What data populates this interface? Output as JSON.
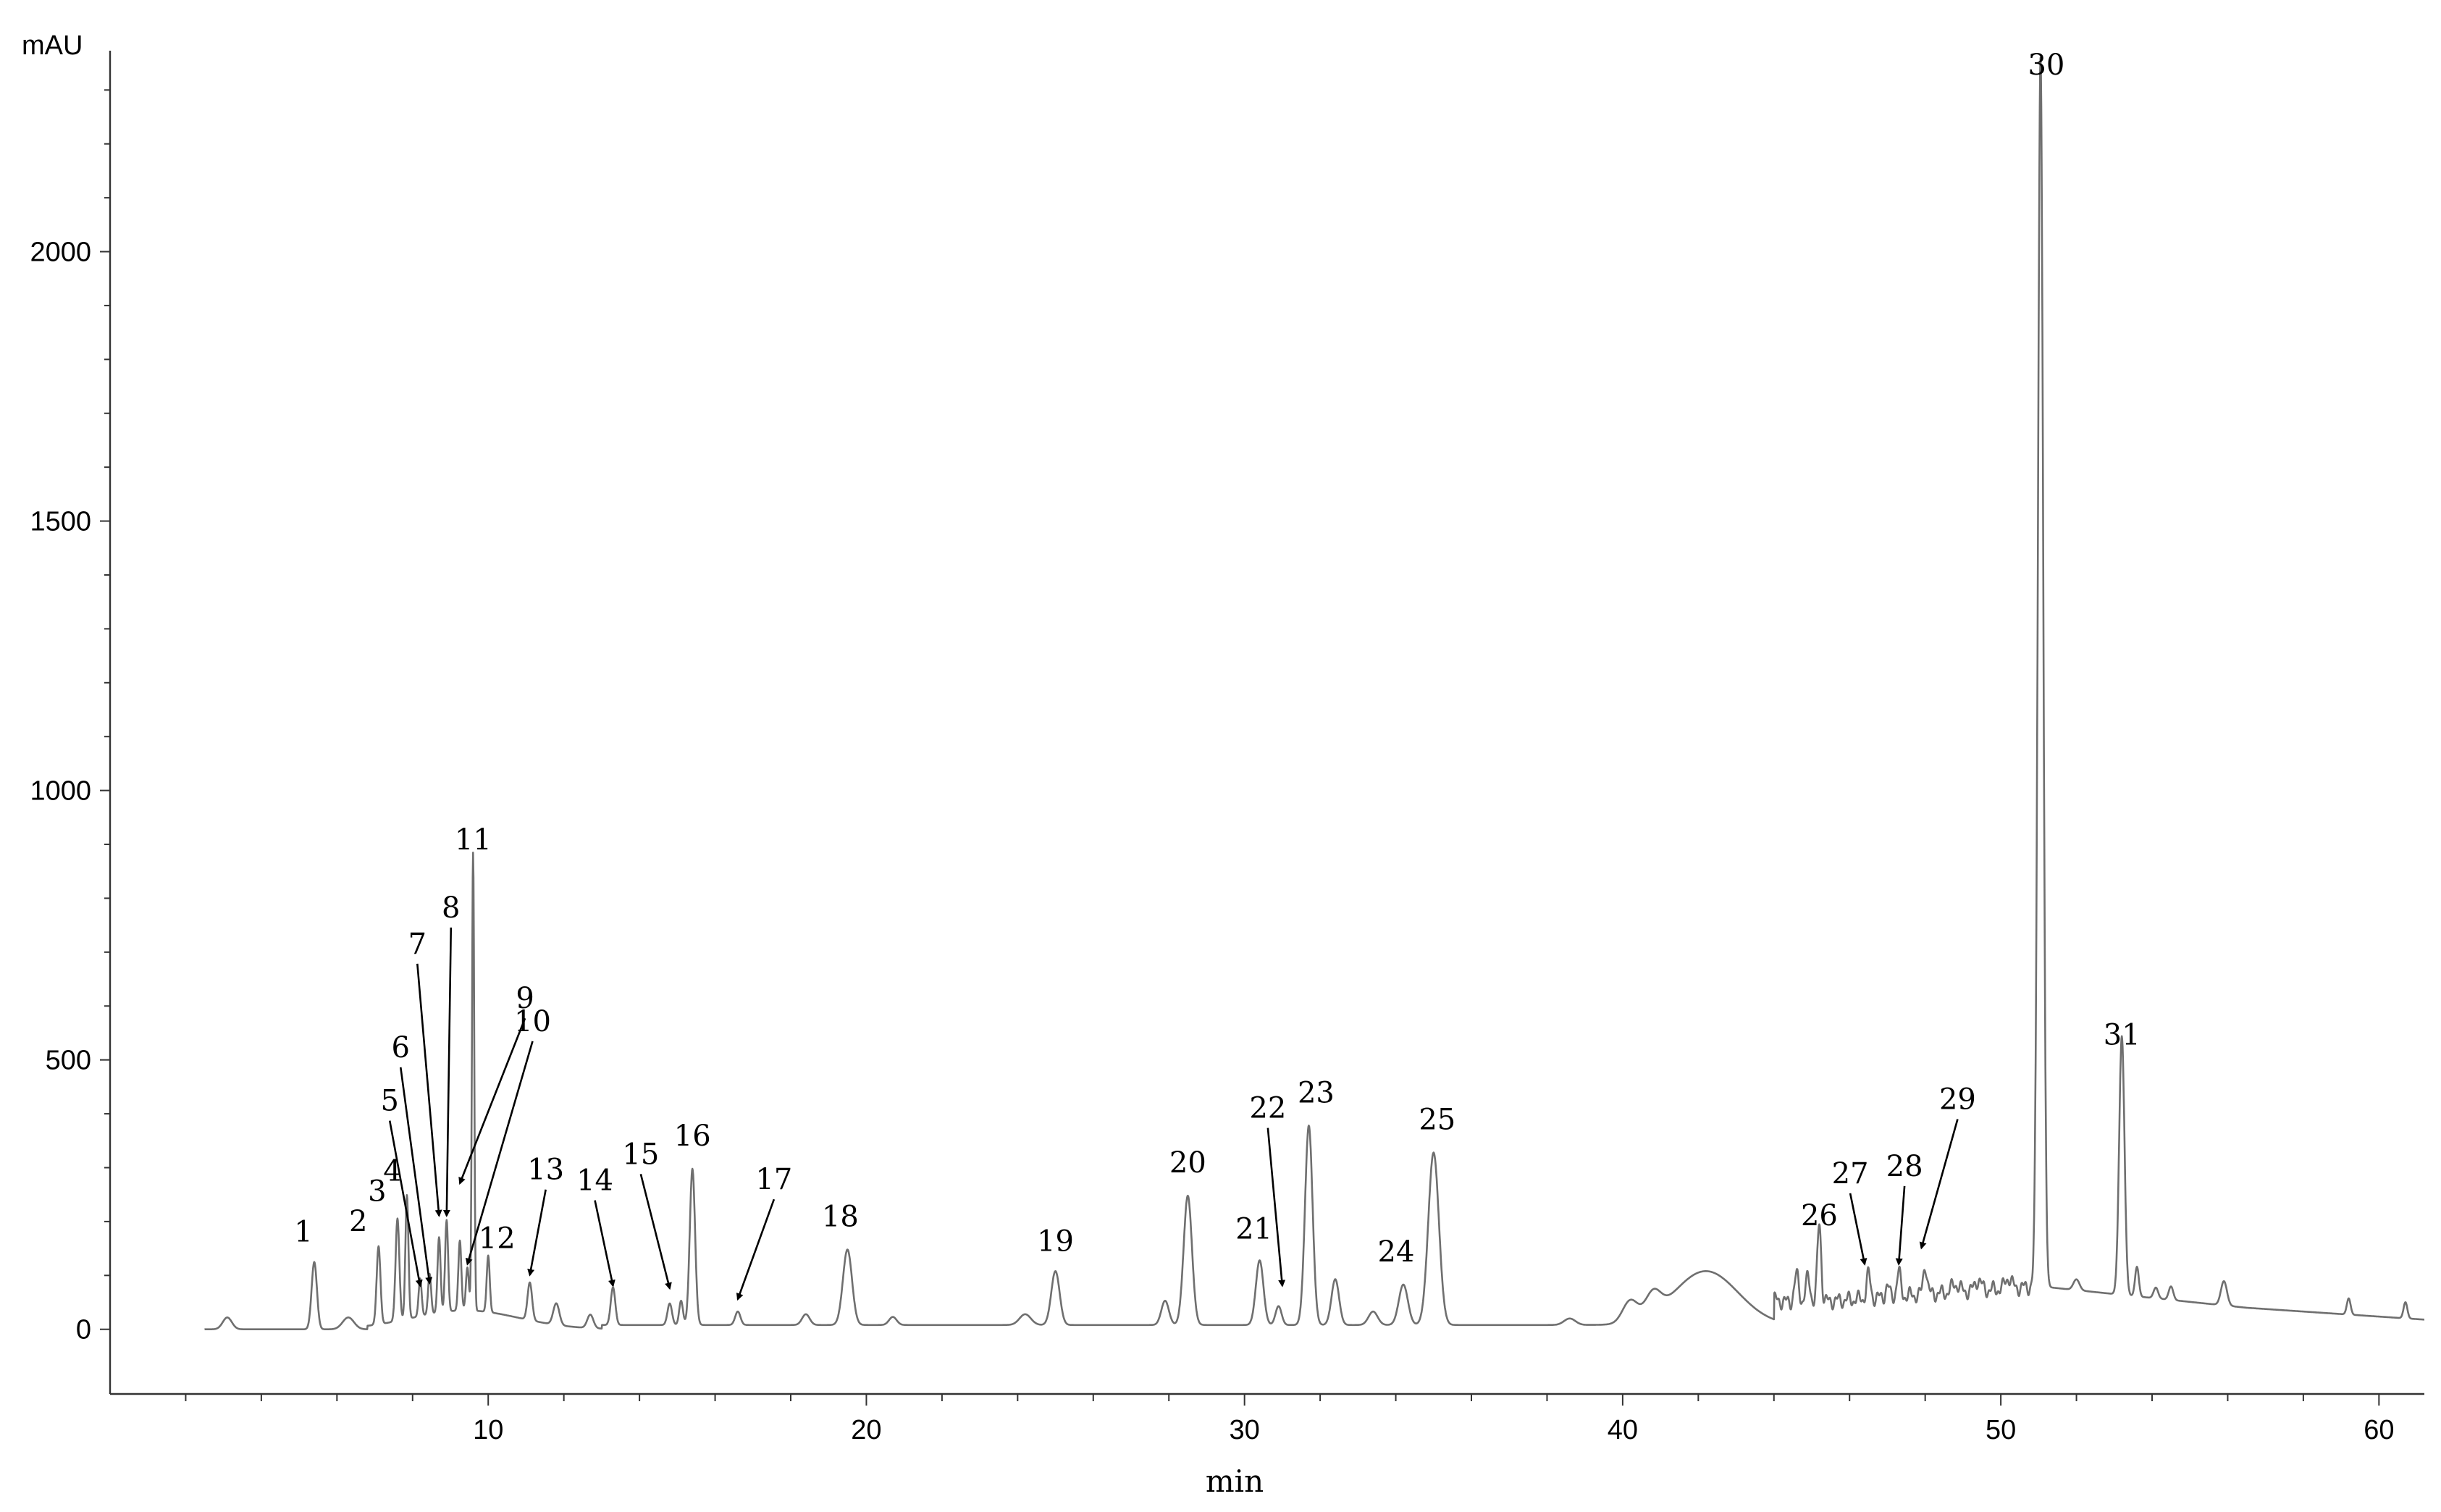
{
  "chart_data": {
    "type": "line",
    "title": "",
    "xlabel": "min",
    "ylabel": "mAU",
    "xlim": [
      0,
      61.2
    ],
    "ylim": [
      -120,
      2420
    ],
    "x_ticks": [
      10,
      20,
      30,
      40,
      50,
      60
    ],
    "x_tick_labels": [
      "10",
      "20",
      "30",
      "40",
      "50",
      "60"
    ],
    "x_minor_step": 2,
    "y_ticks": [
      0,
      500,
      1000,
      1500,
      2000
    ],
    "y_tick_labels": [
      "0",
      "500",
      "1000",
      "1500",
      "2000"
    ],
    "y_minor_step": 100,
    "grid": false,
    "baseline": 0,
    "series": [
      {
        "peaks": [
          {
            "label": "",
            "x": 3.1,
            "y": 22,
            "w": 0.12
          },
          {
            "label": "1",
            "x": 5.4,
            "y": 125,
            "w": 0.07
          },
          {
            "label": "",
            "x": 6.3,
            "y": 22,
            "w": 0.15
          },
          {
            "label": "2",
            "x": 7.1,
            "y": 145,
            "w": 0.05
          },
          {
            "label": "3",
            "x": 7.6,
            "y": 190,
            "w": 0.05
          },
          {
            "label": "4",
            "x": 7.85,
            "y": 230,
            "w": 0.04
          },
          {
            "label": "5",
            "x": 8.2,
            "y": 70,
            "w": 0.04
          },
          {
            "label": "6",
            "x": 8.45,
            "y": 75,
            "w": 0.04
          },
          {
            "label": "7",
            "x": 8.7,
            "y": 140,
            "w": 0.04
          },
          {
            "label": "8",
            "x": 8.9,
            "y": 170,
            "w": 0.04
          },
          {
            "label": "9",
            "x": 9.25,
            "y": 130,
            "w": 0.04
          },
          {
            "label": "10",
            "x": 9.45,
            "y": 80,
            "w": 0.04
          },
          {
            "label": "11",
            "x": 9.6,
            "y": 850,
            "w": 0.03
          },
          {
            "label": "12",
            "x": 10.0,
            "y": 105,
            "w": 0.04
          },
          {
            "label": "13",
            "x": 11.1,
            "y": 70,
            "w": 0.06
          },
          {
            "label": "",
            "x": 11.8,
            "y": 40,
            "w": 0.08
          },
          {
            "label": "",
            "x": 12.7,
            "y": 25,
            "w": 0.08
          },
          {
            "label": "14",
            "x": 13.3,
            "y": 70,
            "w": 0.06
          },
          {
            "label": "15",
            "x": 14.8,
            "y": 40,
            "w": 0.06
          },
          {
            "label": "",
            "x": 15.1,
            "y": 45,
            "w": 0.05
          },
          {
            "label": "16",
            "x": 15.4,
            "y": 290,
            "w": 0.07
          },
          {
            "label": "17",
            "x": 16.6,
            "y": 25,
            "w": 0.07
          },
          {
            "label": "",
            "x": 18.4,
            "y": 20,
            "w": 0.1
          },
          {
            "label": "18",
            "x": 19.5,
            "y": 140,
            "w": 0.12
          },
          {
            "label": "",
            "x": 20.7,
            "y": 15,
            "w": 0.1
          },
          {
            "label": "",
            "x": 24.2,
            "y": 20,
            "w": 0.15
          },
          {
            "label": "19",
            "x": 25.0,
            "y": 100,
            "w": 0.11
          },
          {
            "label": "",
            "x": 27.9,
            "y": 45,
            "w": 0.1
          },
          {
            "label": "20",
            "x": 28.5,
            "y": 240,
            "w": 0.11
          },
          {
            "label": "21",
            "x": 30.4,
            "y": 120,
            "w": 0.1
          },
          {
            "label": "22",
            "x": 30.9,
            "y": 35,
            "w": 0.08
          },
          {
            "label": "23",
            "x": 31.7,
            "y": 370,
            "w": 0.1
          },
          {
            "label": "",
            "x": 32.4,
            "y": 85,
            "w": 0.1
          },
          {
            "label": "",
            "x": 33.4,
            "y": 25,
            "w": 0.12
          },
          {
            "label": "24",
            "x": 34.2,
            "y": 75,
            "w": 0.12
          },
          {
            "label": "25",
            "x": 35.0,
            "y": 320,
            "w": 0.14
          },
          {
            "label": "",
            "x": 38.6,
            "y": 12,
            "w": 0.15
          },
          {
            "label": "",
            "x": 40.2,
            "y": 40,
            "w": 0.2
          },
          {
            "label": "",
            "x": 40.8,
            "y": 40,
            "w": 0.2
          },
          {
            "label": "",
            "x": 42.2,
            "y": 100,
            "w": 0.85
          },
          {
            "label": "",
            "x": 44.6,
            "y": 50,
            "w": 0.06
          },
          {
            "label": "",
            "x": 44.9,
            "y": 45,
            "w": 0.06
          },
          {
            "label": "26",
            "x": 45.2,
            "y": 145,
            "w": 0.05
          },
          {
            "label": "27",
            "x": 46.5,
            "y": 45,
            "w": 0.05
          },
          {
            "label": "",
            "x": 47.0,
            "y": 20,
            "w": 0.05
          },
          {
            "label": "28",
            "x": 47.3,
            "y": 45,
            "w": 0.05
          },
          {
            "label": "29",
            "x": 48.0,
            "y": 55,
            "w": 0.05
          },
          {
            "label": "",
            "x": 48.8,
            "y": 15,
            "w": 0.1
          },
          {
            "label": "",
            "x": 49.4,
            "y": 20,
            "w": 0.08
          },
          {
            "label": "",
            "x": 50.2,
            "y": 20,
            "w": 0.08
          },
          {
            "label": "30",
            "x": 51.05,
            "y": 2280,
            "w": 0.07
          },
          {
            "label": "",
            "x": 52.0,
            "y": 20,
            "w": 0.08
          },
          {
            "label": "31",
            "x": 53.2,
            "y": 480,
            "w": 0.07
          },
          {
            "label": "",
            "x": 53.6,
            "y": 55,
            "w": 0.05
          },
          {
            "label": "",
            "x": 54.1,
            "y": 20,
            "w": 0.06
          },
          {
            "label": "",
            "x": 54.5,
            "y": 25,
            "w": 0.06
          },
          {
            "label": "",
            "x": 55.9,
            "y": 45,
            "w": 0.08
          },
          {
            "label": "",
            "x": 59.2,
            "y": 30,
            "w": 0.05
          },
          {
            "label": "",
            "x": 60.7,
            "y": 30,
            "w": 0.05
          }
        ],
        "baseline_regions": [
          {
            "from": 44.0,
            "to": 51.0,
            "start": 45,
            "end": 80
          },
          {
            "from": 51.0,
            "to": 56.5,
            "start": 80,
            "end": 40
          },
          {
            "from": 56.5,
            "to": 61.2,
            "start": 40,
            "end": 18
          }
        ]
      }
    ],
    "annotations": [
      {
        "label": "1",
        "style": "text",
        "x": 5.4,
        "y": 125
      },
      {
        "label": "2",
        "style": "text",
        "x": 7.1,
        "y": 145
      },
      {
        "label": "3",
        "style": "text",
        "x": 7.6,
        "y": 190
      },
      {
        "label": "4",
        "style": "text",
        "x": 7.85,
        "y": 230
      },
      {
        "label": "5",
        "style": "arrow",
        "x": 8.2,
        "y": 70
      },
      {
        "label": "6",
        "style": "arrow",
        "x": 8.45,
        "y": 75
      },
      {
        "label": "7",
        "style": "arrow",
        "x": 8.7,
        "y": 200
      },
      {
        "label": "8",
        "style": "arrow",
        "x": 8.9,
        "y": 200
      },
      {
        "label": "9",
        "style": "arrow",
        "x": 9.25,
        "y": 260
      },
      {
        "label": "10",
        "style": "arrow",
        "x": 9.45,
        "y": 110
      },
      {
        "label": "11",
        "style": "text",
        "x": 9.6,
        "y": 850
      },
      {
        "label": "12",
        "style": "text",
        "x": 10.0,
        "y": 105
      },
      {
        "label": "13",
        "style": "arrow",
        "x": 11.1,
        "y": 90
      },
      {
        "label": "14",
        "style": "arrow",
        "x": 13.3,
        "y": 70
      },
      {
        "label": "15",
        "style": "arrow",
        "x": 14.8,
        "y": 65
      },
      {
        "label": "16",
        "style": "text",
        "x": 15.4,
        "y": 290
      },
      {
        "label": "17",
        "style": "arrow",
        "x": 16.6,
        "y": 45
      },
      {
        "label": "18",
        "style": "text",
        "x": 19.5,
        "y": 140
      },
      {
        "label": "19",
        "style": "text",
        "x": 25.0,
        "y": 100
      },
      {
        "label": "20",
        "style": "text",
        "x": 28.5,
        "y": 240
      },
      {
        "label": "21",
        "style": "text",
        "x": 30.4,
        "y": 120
      },
      {
        "label": "22",
        "style": "arrow",
        "x": 31.0,
        "y": 70
      },
      {
        "label": "23",
        "style": "text",
        "x": 31.7,
        "y": 370
      },
      {
        "label": "24",
        "style": "text",
        "x": 34.2,
        "y": 75
      },
      {
        "label": "25",
        "style": "text",
        "x": 35.0,
        "y": 320
      },
      {
        "label": "26",
        "style": "text",
        "x": 45.2,
        "y": 145
      },
      {
        "label": "27",
        "style": "arrow",
        "x": 46.4,
        "y": 110
      },
      {
        "label": "28",
        "style": "arrow",
        "x": 47.3,
        "y": 110
      },
      {
        "label": "29",
        "style": "arrow",
        "x": 47.9,
        "y": 140
      },
      {
        "label": "30",
        "style": "text",
        "x": 51.05,
        "y": 2280
      },
      {
        "label": "31",
        "style": "text",
        "x": 53.2,
        "y": 480
      }
    ]
  }
}
